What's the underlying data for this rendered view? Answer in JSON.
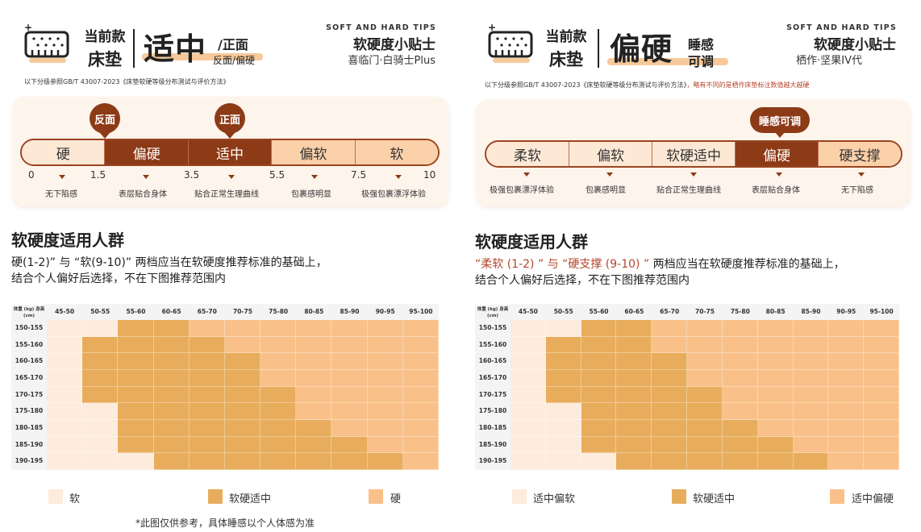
{
  "colors": {
    "soft": "#fdebdc",
    "mid": "#e8ad5c",
    "hard": "#f9c189",
    "accent": "#8d3a17"
  },
  "left": {
    "head_small": "当前款",
    "head_bed": "床垫",
    "head_big": "适中",
    "head_tag1": "/正面",
    "head_tag2": "反面/偏硬",
    "tips_en": "SOFT AND HARD TIPS",
    "tips_cn": "软硬度小贴士",
    "tips_sub": "喜临门·白骑士Plus",
    "standard": "以下分级参照GB/T 43007-2023《床垫软硬等级分布测试与评价方法》",
    "pins": [
      "反面",
      "正面"
    ],
    "scale": [
      "硬",
      "偏硬",
      "适中",
      "偏软",
      "软"
    ],
    "ticks": [
      "0",
      "1.5",
      "3.5",
      "5.5",
      "7.5",
      "10"
    ],
    "descs": [
      "无下陷感",
      "表层贴合身体",
      "贴合正常生理曲线",
      "包裹感明显",
      "极强包裹漂浮体验"
    ],
    "section_title": "软硬度适用人群",
    "note1": "硬(1-2)” 与 “软(9-10)” 两档应当在软硬度推荐标准的基础上，",
    "note2": "结合个人偏好后选择，不在下图推荐范围内",
    "legend": [
      "软",
      "软硬适中",
      "硬"
    ],
    "footnote": "*此图仅供参考，具体睡感以个人体感为准"
  },
  "right": {
    "head_small": "当前款",
    "head_bed": "床垫",
    "head_big": "偏硬",
    "head_tag1": "睡感",
    "head_tag2": "可调",
    "tips_en": "SOFT AND HARD TIPS",
    "tips_cn": "软硬度小贴士",
    "tips_sub": "栖作·坚果IV代",
    "standard": "以下分级参照GB/T 43007-2023《床垫软硬等级分布测试与评价方法》",
    "standard_warn": "，略有不同的是栖作床垫标注数值越大越硬",
    "pins": [
      "睡感可调"
    ],
    "scale": [
      "柔软",
      "偏软",
      "软硬适中",
      "偏硬",
      "硬支撑"
    ],
    "descs": [
      "极强包裹漂浮体验",
      "包裹感明显",
      "贴合正常生理曲线",
      "表层贴合身体",
      "无下陷感"
    ],
    "section_title": "软硬度适用人群",
    "note1a": "“柔软 (1-2) ” 与 “硬支撑 (9-10) ”",
    "note1b": " 两档应当在软硬度推荐标准的基础上，",
    "note2": "结合个人偏好后选择，不在下图推荐范围内",
    "legend": [
      "适中偏软",
      "软硬适中",
      "适中偏硬"
    ]
  },
  "chart_data": [
    {
      "type": "heatmap",
      "title": "软硬度适用人群",
      "xlabel": "体重 (kg)",
      "ylabel": "身高 (cm)",
      "x": [
        "45-50",
        "50-55",
        "55-60",
        "60-65",
        "65-70",
        "70-75",
        "75-80",
        "80-85",
        "85-90",
        "90-95",
        "95-100"
      ],
      "y": [
        "150-155",
        "155-160",
        "160-165",
        "165-170",
        "170-175",
        "175-180",
        "180-185",
        "185-190",
        "190-195"
      ],
      "legend": [
        "软",
        "软硬适中",
        "硬"
      ],
      "values": [
        [
          0,
          0,
          1,
          1,
          2,
          2,
          2,
          2,
          2,
          2,
          2
        ],
        [
          0,
          1,
          1,
          1,
          1,
          2,
          2,
          2,
          2,
          2,
          2
        ],
        [
          0,
          1,
          1,
          1,
          1,
          1,
          2,
          2,
          2,
          2,
          2
        ],
        [
          0,
          1,
          1,
          1,
          1,
          1,
          2,
          2,
          2,
          2,
          2
        ],
        [
          0,
          1,
          1,
          1,
          1,
          1,
          1,
          2,
          2,
          2,
          2
        ],
        [
          0,
          0,
          1,
          1,
          1,
          1,
          1,
          2,
          2,
          2,
          2
        ],
        [
          0,
          0,
          1,
          1,
          1,
          1,
          1,
          1,
          2,
          2,
          2
        ],
        [
          0,
          0,
          1,
          1,
          1,
          1,
          1,
          1,
          1,
          2,
          2
        ],
        [
          0,
          0,
          0,
          1,
          1,
          1,
          1,
          1,
          1,
          1,
          2
        ]
      ]
    },
    {
      "type": "heatmap",
      "title": "软硬度适用人群",
      "xlabel": "体重 (kg)",
      "ylabel": "身高 (cm)",
      "x": [
        "45-50",
        "50-55",
        "55-60",
        "60-65",
        "65-70",
        "70-75",
        "75-80",
        "80-85",
        "85-90",
        "90-95",
        "95-100"
      ],
      "y": [
        "150-155",
        "155-160",
        "160-165",
        "165-170",
        "170-175",
        "175-180",
        "180-185",
        "185-190",
        "190-195"
      ],
      "legend": [
        "适中偏软",
        "软硬适中",
        "适中偏硬"
      ],
      "values": [
        [
          0,
          0,
          1,
          1,
          2,
          2,
          2,
          2,
          2,
          2,
          2
        ],
        [
          0,
          1,
          1,
          1,
          2,
          2,
          2,
          2,
          2,
          2,
          2
        ],
        [
          0,
          1,
          1,
          1,
          1,
          2,
          2,
          2,
          2,
          2,
          2
        ],
        [
          0,
          1,
          1,
          1,
          1,
          2,
          2,
          2,
          2,
          2,
          2
        ],
        [
          0,
          1,
          1,
          1,
          1,
          1,
          2,
          2,
          2,
          2,
          2
        ],
        [
          0,
          0,
          1,
          1,
          1,
          1,
          2,
          2,
          2,
          2,
          2
        ],
        [
          0,
          0,
          1,
          1,
          1,
          1,
          1,
          2,
          2,
          2,
          2
        ],
        [
          0,
          0,
          1,
          1,
          1,
          1,
          1,
          1,
          2,
          2,
          2
        ],
        [
          0,
          0,
          0,
          1,
          1,
          1,
          1,
          1,
          1,
          2,
          2
        ]
      ]
    }
  ]
}
